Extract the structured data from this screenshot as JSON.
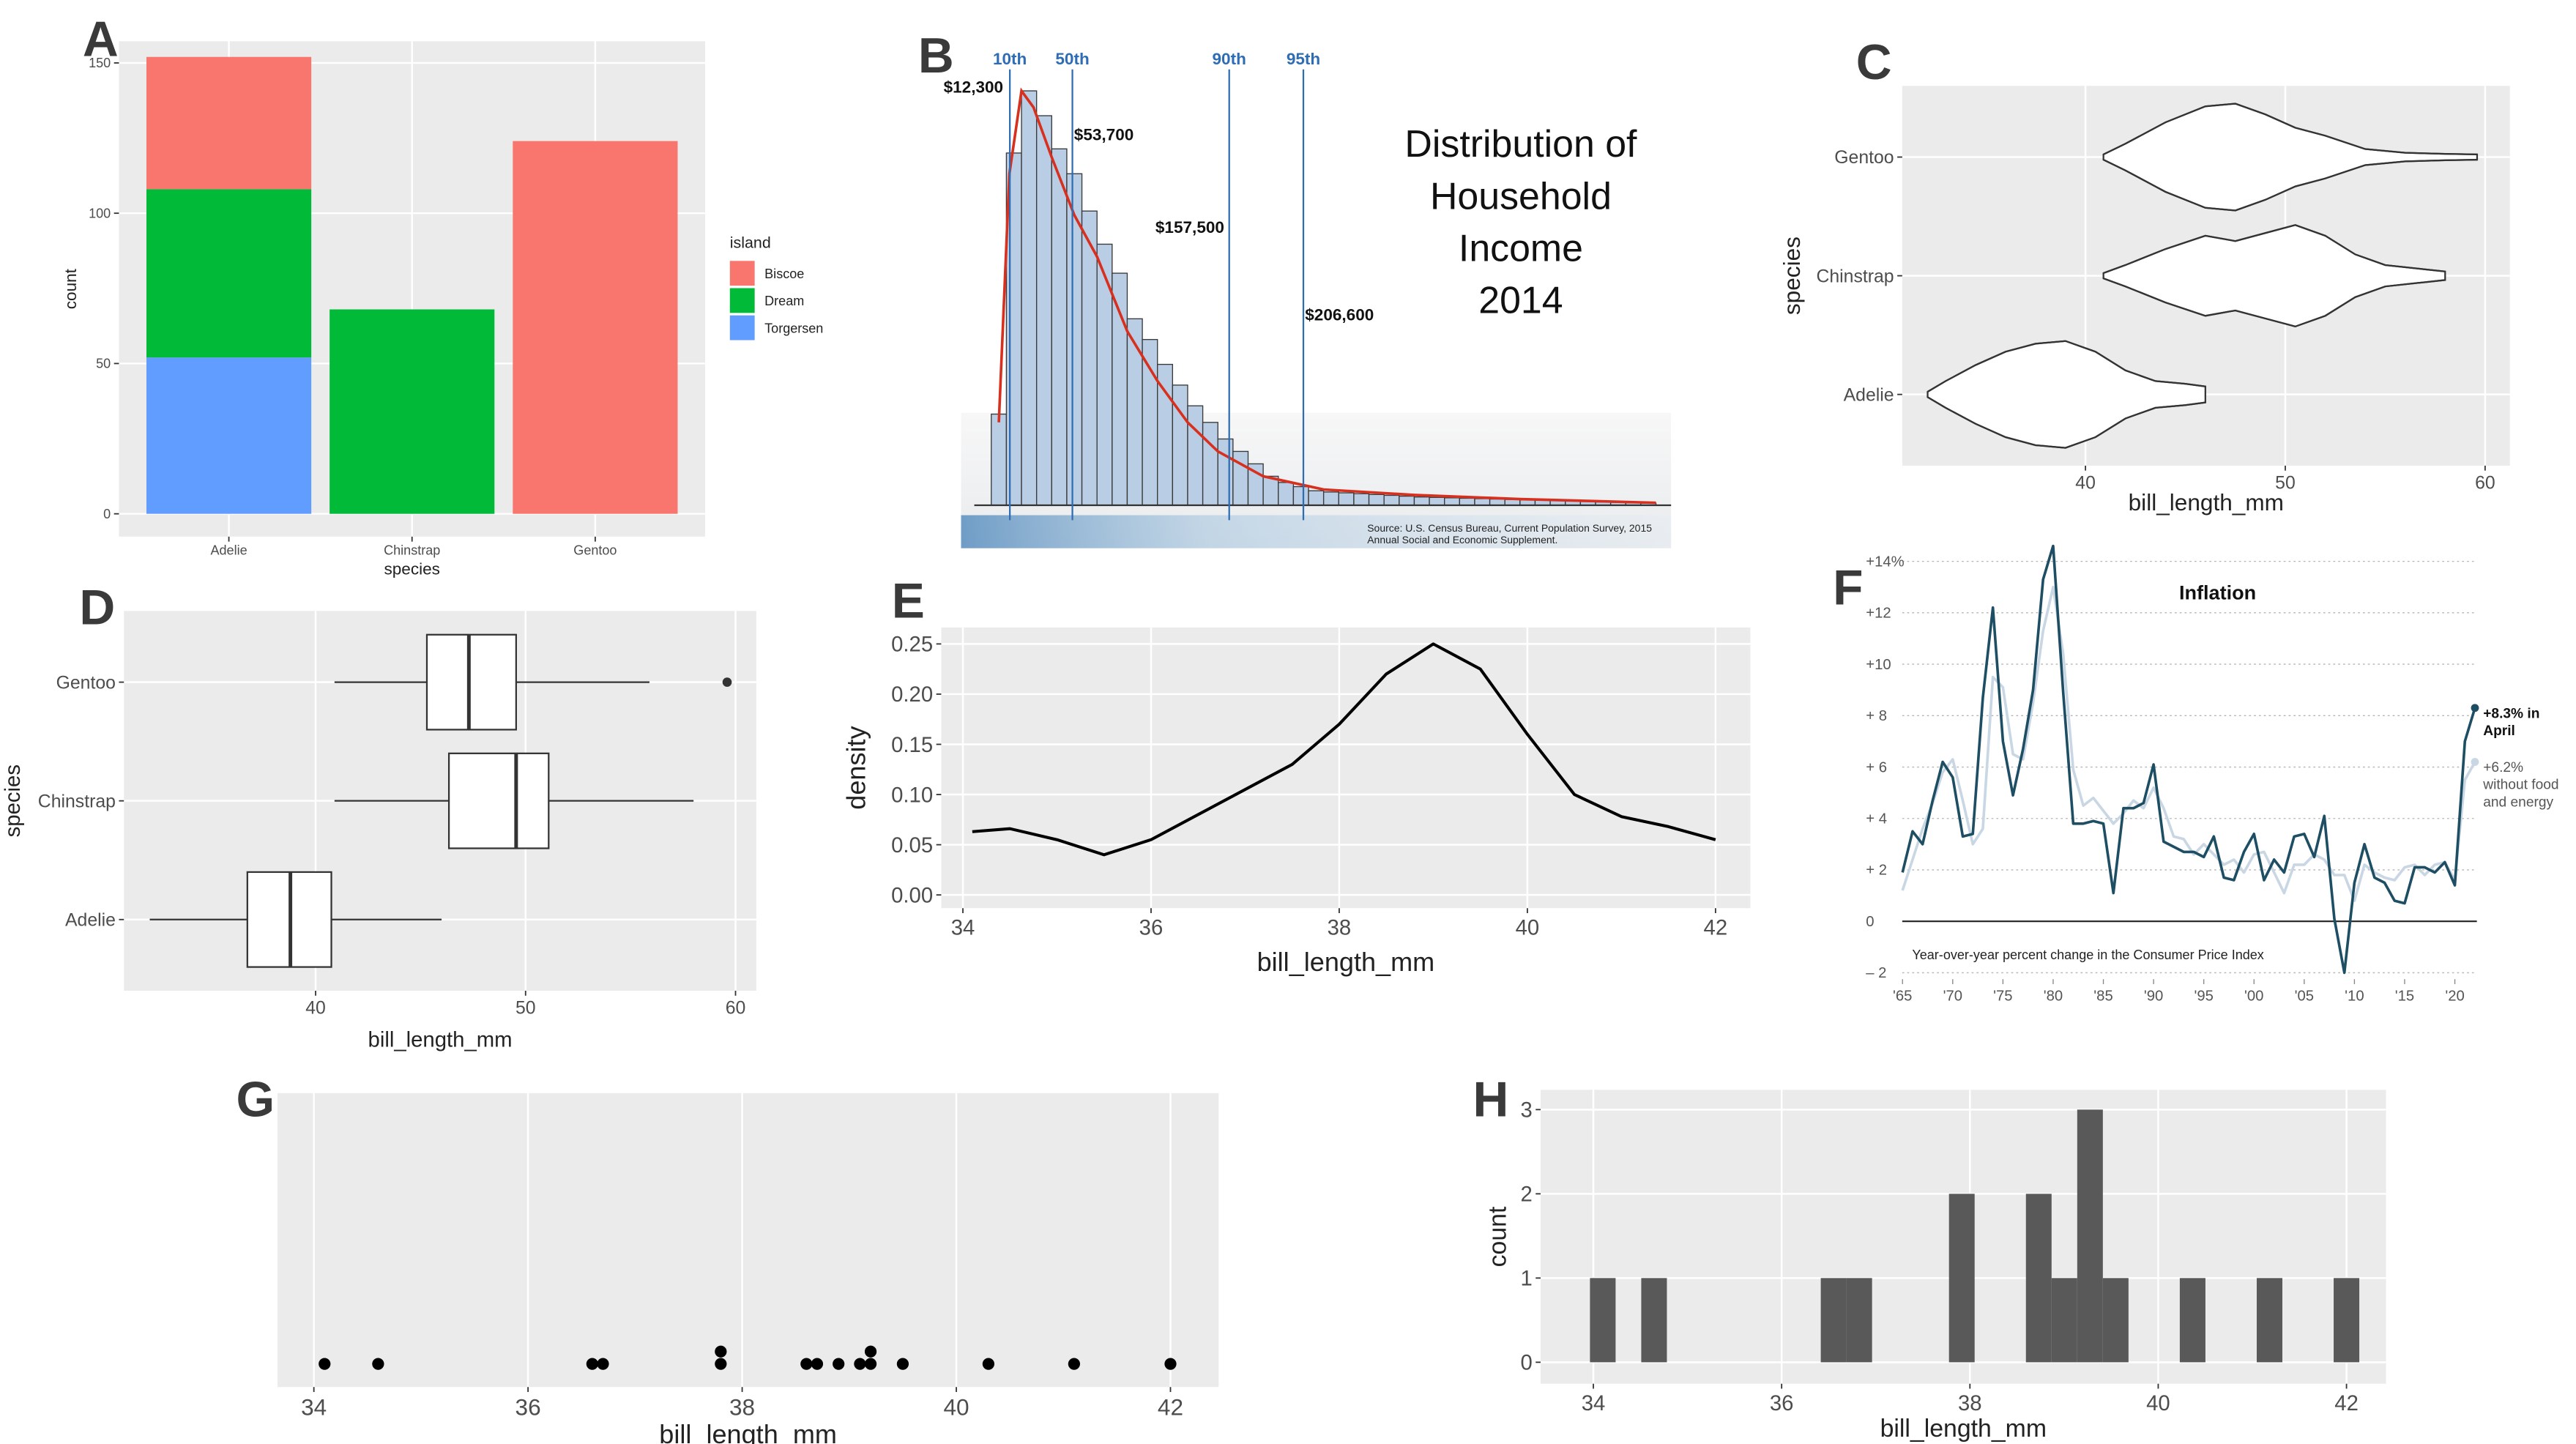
{
  "chart_data": [
    {
      "panel": "A",
      "type": "bar",
      "stacked": true,
      "categories": [
        "Adelie",
        "Chinstrap",
        "Gentoo"
      ],
      "series": [
        {
          "name": "Biscoe",
          "color": "#F8766D",
          "values": [
            44,
            0,
            124
          ]
        },
        {
          "name": "Dream",
          "color": "#00BA38",
          "values": [
            56,
            68,
            0
          ]
        },
        {
          "name": "Torgersen",
          "color": "#619CFF",
          "values": [
            52,
            0,
            0
          ]
        }
      ],
      "ylim": [
        -7.6,
        157.2
      ],
      "yticks": [
        0,
        50,
        100,
        150
      ],
      "grid": true,
      "x_label": "species",
      "y_label": "count",
      "legend_title": "island",
      "legend": "right"
    },
    {
      "panel": "B",
      "type": "histogram",
      "title": [
        "Distribution of",
        "Household",
        "Income",
        "2014"
      ],
      "bins": [
        0,
        10000,
        20000,
        30000,
        40000,
        50000,
        60000,
        70000,
        80000,
        90000,
        100000,
        110000,
        120000,
        130000,
        140000,
        150000,
        160000,
        170000,
        180000,
        190000,
        200000,
        210000,
        220000,
        230000,
        240000,
        250000,
        260000,
        270000,
        280000,
        290000,
        300000,
        310000,
        320000,
        330000,
        340000,
        350000,
        360000,
        370000,
        380000,
        390000,
        400000,
        410000,
        420000,
        430000,
        440000
      ],
      "counts": [
        22,
        85,
        100,
        94,
        86,
        80,
        71,
        63,
        56,
        45,
        40,
        34,
        29,
        24,
        20,
        16,
        13,
        10,
        7,
        5.5,
        4.5,
        3.5,
        3.2,
        3,
        2.8,
        2.6,
        2.4,
        2.2,
        2,
        1.9,
        1.8,
        1.7,
        1.6,
        1.5,
        1.4,
        1.3,
        1.2,
        1.1,
        1,
        0.9,
        0.8,
        0.7,
        0.6,
        0.5
      ],
      "color": "#b9cde5",
      "xlim": [
        -20000,
        450000
      ],
      "ylim": [
        0,
        102
      ],
      "density": {
        "color": "#d7301f",
        "x": [
          5000,
          12000,
          20000,
          28000,
          40000,
          55000,
          70000,
          90000,
          110000,
          130000,
          150000,
          180000,
          220000,
          280000,
          350000,
          440000
        ],
        "values": [
          20,
          80,
          100,
          96,
          84,
          70,
          60,
          42,
          30,
          20,
          13,
          7,
          3.8,
          2.5,
          1.5,
          0.6
        ]
      },
      "percentile_color": "#2e6db4",
      "percentiles": [
        {
          "label": "10th",
          "value": 12300,
          "value_label": "$12,300"
        },
        {
          "label": "50th",
          "value": 53700,
          "value_label": "$53,700"
        },
        {
          "label": "90th",
          "value": 157500,
          "value_label": "$157,500"
        },
        {
          "label": "95th",
          "value": 206600,
          "value_label": "$206,600"
        }
      ],
      "source": [
        "Source: U.S. Census Bureau, Current Population Survey, 2015",
        "Annual Social and Economic Supplement."
      ]
    },
    {
      "panel": "C",
      "type": "violin",
      "categories": [
        "Gentoo",
        "Chinstrap",
        "Adelie"
      ],
      "series": [
        {
          "x": [
            40.9,
            42,
            44,
            46,
            47.5,
            49,
            50.5,
            52,
            54,
            56,
            58,
            59.6
          ],
          "density": [
            0.05,
            0.25,
            0.65,
            0.95,
            1.0,
            0.8,
            0.55,
            0.4,
            0.15,
            0.08,
            0.06,
            0.05
          ]
        },
        {
          "x": [
            40.9,
            42,
            44,
            46,
            47.5,
            49,
            50.5,
            52,
            53.5,
            55,
            57,
            58
          ],
          "density": [
            0.05,
            0.2,
            0.5,
            0.75,
            0.65,
            0.8,
            0.95,
            0.75,
            0.4,
            0.2,
            0.12,
            0.08
          ]
        },
        {
          "x": [
            32.1,
            33,
            34.5,
            36,
            37.5,
            39,
            40.5,
            42,
            43.5,
            45,
            46
          ],
          "density": [
            0.05,
            0.25,
            0.55,
            0.8,
            0.95,
            1.0,
            0.8,
            0.45,
            0.25,
            0.2,
            0.15
          ]
        }
      ],
      "xlim": [
        30.83,
        61.24
      ],
      "xticks": [
        40,
        50,
        60
      ],
      "grid": true,
      "x_label": "bill_length_mm",
      "y_label": "species"
    },
    {
      "panel": "D",
      "type": "boxplot",
      "horizontal": true,
      "categories": [
        "Gentoo",
        "Chinstrap",
        "Adelie"
      ],
      "boxes": [
        {
          "whisker_low": 40.9,
          "q1": 45.3,
          "median": 47.3,
          "q3": 49.55,
          "whisker_high": 55.9,
          "outliers": [
            59.6
          ]
        },
        {
          "whisker_low": 40.9,
          "q1": 46.35,
          "median": 49.55,
          "q3": 51.1,
          "whisker_high": 58,
          "outliers": []
        },
        {
          "whisker_low": 32.1,
          "q1": 36.75,
          "median": 38.8,
          "q3": 40.75,
          "whisker_high": 46,
          "outliers": []
        }
      ],
      "xlim": [
        30.87,
        60.99
      ],
      "xticks": [
        40,
        50,
        60
      ],
      "grid": true,
      "x_label": "bill_length_mm",
      "y_label": "species"
    },
    {
      "panel": "E",
      "type": "line",
      "color": "#000000",
      "x": [
        34.1,
        34.5,
        35,
        35.5,
        36,
        36.5,
        37,
        37.5,
        38,
        38.5,
        39,
        39.5,
        40,
        40.5,
        41,
        41.5,
        42
      ],
      "values": [
        0.063,
        0.066,
        0.055,
        0.04,
        0.055,
        0.08,
        0.105,
        0.13,
        0.17,
        0.22,
        0.25,
        0.225,
        0.16,
        0.1,
        0.078,
        0.068,
        0.055
      ],
      "xlim": [
        33.77,
        42.37
      ],
      "xticks": [
        34,
        36,
        38,
        40,
        42
      ],
      "ylim": [
        -0.0132,
        0.2664
      ],
      "yticks": [
        {
          "value": 0,
          "label": "0.00"
        },
        0.05,
        {
          "value": 0.1,
          "label": "0.10"
        },
        0.15,
        {
          "value": 0.2,
          "label": "0.20"
        },
        0.25
      ],
      "grid": true,
      "x_label": "bill_length_mm",
      "y_label": "density"
    },
    {
      "panel": "F",
      "type": "line",
      "title": "Inflation",
      "note": "Year-over-year percent change in the Consumer Price Index",
      "x": [
        1965,
        1966,
        1967,
        1968,
        1969,
        1970,
        1971,
        1972,
        1973,
        1974,
        1975,
        1976,
        1977,
        1978,
        1979,
        1980,
        1981,
        1982,
        1983,
        1984,
        1985,
        1986,
        1987,
        1988,
        1989,
        1990,
        1991,
        1992,
        1993,
        1994,
        1995,
        1996,
        1997,
        1998,
        1999,
        2000,
        2001,
        2002,
        2003,
        2004,
        2005,
        2006,
        2007,
        2008,
        2009,
        2010,
        2011,
        2012,
        2013,
        2014,
        2015,
        2016,
        2017,
        2018,
        2019,
        2020,
        2021,
        2022
      ],
      "series": [
        {
          "color": "#c9d6e3",
          "values": [
            1.2,
            2.4,
            3.6,
            4.6,
            5.8,
            6.3,
            4.7,
            3.0,
            3.6,
            9.5,
            9.1,
            6.5,
            6.3,
            8.5,
            11.3,
            13.0,
            10.4,
            5.9,
            4.5,
            4.8,
            4.3,
            3.8,
            4.2,
            4.7,
            4.4,
            5.2,
            4.4,
            3.3,
            3.2,
            2.6,
            3.0,
            2.6,
            2.2,
            2.4,
            1.9,
            2.6,
            2.7,
            1.9,
            1.1,
            2.2,
            2.2,
            2.6,
            2.4,
            1.8,
            1.8,
            0.8,
            2.2,
            1.9,
            1.7,
            1.6,
            2.1,
            2.2,
            1.8,
            2.2,
            2.3,
            1.6,
            5.5,
            6.2
          ]
        },
        {
          "color": "#1d4e63",
          "values": [
            1.9,
            3.5,
            3.0,
            4.7,
            6.2,
            5.6,
            3.3,
            3.4,
            8.7,
            12.2,
            7.0,
            4.9,
            6.7,
            9.0,
            13.3,
            14.6,
            8.9,
            3.8,
            3.8,
            3.9,
            3.8,
            1.1,
            4.4,
            4.4,
            4.6,
            6.1,
            3.1,
            2.9,
            2.7,
            2.7,
            2.5,
            3.3,
            1.7,
            1.6,
            2.7,
            3.4,
            1.6,
            2.4,
            1.9,
            3.3,
            3.4,
            2.5,
            4.1,
            0.1,
            -2.0,
            1.5,
            3.0,
            1.7,
            1.5,
            0.8,
            0.7,
            2.1,
            2.1,
            1.9,
            2.3,
            1.4,
            7.0,
            8.3
          ]
        }
      ],
      "annotations": [
        [
          "+8.3% in",
          "April"
        ],
        [
          "+6.2%",
          "without food",
          "and energy"
        ]
      ],
      "xlim": [
        1963,
        2024
      ],
      "xticks": [
        {
          "value": 1965,
          "label": "'65"
        },
        {
          "value": 1970,
          "label": "'70"
        },
        {
          "value": 1975,
          "label": "'75"
        },
        {
          "value": 1980,
          "label": "'80"
        },
        {
          "value": 1985,
          "label": "'85"
        },
        {
          "value": 1990,
          "label": "'90"
        },
        {
          "value": 1995,
          "label": "'95"
        },
        {
          "value": 2000,
          "label": "'00"
        },
        {
          "value": 2005,
          "label": "'05"
        },
        {
          "value": 2010,
          "label": "'10"
        },
        {
          "value": 2015,
          "label": "'15"
        },
        {
          "value": 2020,
          "label": "'20"
        }
      ],
      "ylim": [
        -2.7,
        14.64
      ],
      "yticks": [
        {
          "value": 14,
          "label": "+14%"
        },
        {
          "value": 12,
          "label": "+12"
        },
        {
          "value": 10,
          "label": "+10"
        },
        {
          "value": 8,
          "label": "+ 8"
        },
        {
          "value": 6,
          "label": "+ 6"
        },
        {
          "value": 4,
          "label": "+ 4"
        },
        {
          "value": 2,
          "label": "+ 2"
        },
        0,
        {
          "value": -2,
          "label": "– 2"
        }
      ],
      "grid": true
    },
    {
      "panel": "G",
      "type": "scatter",
      "color": "#000000",
      "x": [
        34.1,
        34.6,
        36.6,
        36.7,
        37.8,
        37.8,
        38.6,
        38.7,
        38.9,
        39.1,
        39.2,
        39.2,
        39.5,
        40.3,
        41.1,
        42.0
      ],
      "xlim": [
        33.66,
        42.45
      ],
      "xticks": [
        34,
        36,
        38,
        40,
        42
      ],
      "grid": true,
      "x_label": "bill_length_mm"
    },
    {
      "panel": "H",
      "type": "histogram",
      "color": "#595959",
      "bins": [
        33.964,
        34.2364,
        34.5088,
        34.7812,
        35.0536,
        35.326,
        35.5984,
        35.8708,
        36.1432,
        36.4156,
        36.688,
        36.9604,
        37.2328,
        37.5052,
        37.7776,
        38.05,
        38.3224,
        38.5948,
        38.8672,
        39.1396,
        39.412,
        39.6844,
        39.9568,
        40.2292,
        40.5016,
        40.774,
        41.0464,
        41.3188,
        41.5912,
        41.8636,
        42.136
      ],
      "counts": [
        1,
        0,
        1,
        0,
        0,
        0,
        0,
        0,
        0,
        1,
        1,
        0,
        0,
        0,
        2,
        0,
        0,
        2,
        1,
        3,
        1,
        0,
        0,
        1,
        0,
        0,
        1,
        0,
        0,
        1
      ],
      "xlim": [
        33.44,
        42.42
      ],
      "xticks": [
        34,
        36,
        38,
        40,
        42
      ],
      "ylim": [
        -0.255,
        3.235
      ],
      "yticks": [
        0,
        1,
        2,
        3
      ],
      "grid": true,
      "x_label": "bill_length_mm",
      "y_label": "count"
    }
  ]
}
